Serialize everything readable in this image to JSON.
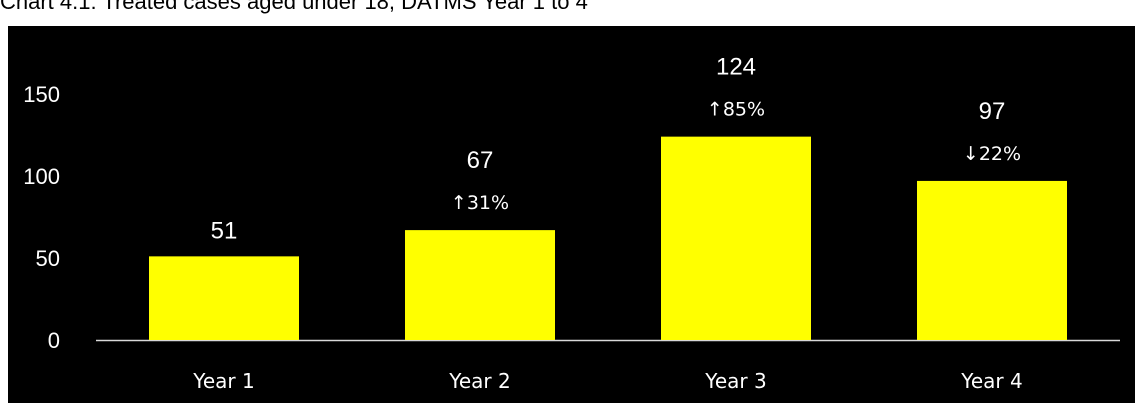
{
  "title": "Chart 4.1: Treated cases aged under 18, DATMS Year 1 to 4",
  "colors": {
    "bar": "#ffff00",
    "background": "#000000",
    "text": "#ffffff",
    "axis": "#d9d9d9"
  },
  "chart_data": {
    "type": "bar",
    "title": "Chart 4.1: Treated cases aged under 18, DATMS Year 1 to 4",
    "xlabel": "",
    "ylabel": "",
    "categories": [
      "Year 1",
      "Year 2",
      "Year 3",
      "Year 4"
    ],
    "values": [
      51,
      67,
      124,
      97
    ],
    "data_labels": [
      "51",
      "67",
      "124",
      "97"
    ],
    "change_labels": [
      "",
      "↑31%",
      "↑85%",
      "↓22%"
    ],
    "yticks": [
      0,
      50,
      100,
      150
    ],
    "ylim": [
      0,
      165
    ],
    "grid": false,
    "legend": "none"
  }
}
